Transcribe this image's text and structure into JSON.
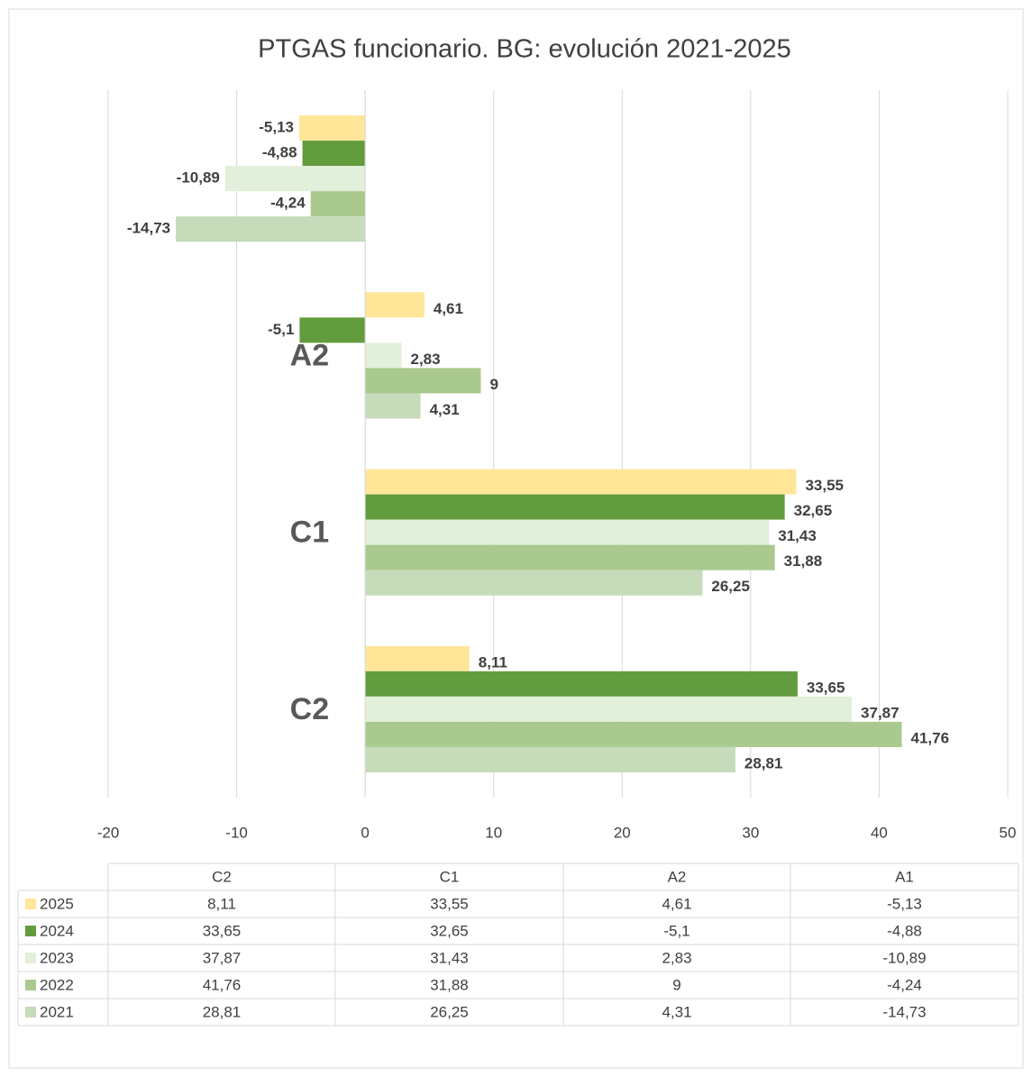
{
  "chart_data": {
    "type": "hbar",
    "title": "PTGAS funcionario. BG: evolución 2021-2025",
    "categories": [
      "C2",
      "C1",
      "A2",
      "A1"
    ],
    "series": [
      {
        "name": "2025",
        "color": "#ffe699",
        "values": [
          8.11,
          33.55,
          4.61,
          -5.13
        ],
        "value_labels": [
          "8,11",
          "33,55",
          "4,61",
          "-5,13"
        ]
      },
      {
        "name": "2024",
        "color": "#629c3e",
        "values": [
          33.65,
          32.65,
          -5.1,
          -4.88
        ],
        "value_labels": [
          "33,65",
          "32,65",
          "-5,1",
          "-4,88"
        ]
      },
      {
        "name": "2023",
        "color": "#e2efda",
        "values": [
          37.87,
          31.43,
          2.83,
          -10.89
        ],
        "value_labels": [
          "37,87",
          "31,43",
          "2,83",
          "-10,89"
        ]
      },
      {
        "name": "2022",
        "color": "#a9c98f",
        "values": [
          41.76,
          31.88,
          9,
          -4.24
        ],
        "value_labels": [
          "41,76",
          "31,88",
          "9",
          "-4,24"
        ]
      },
      {
        "name": "2021",
        "color": "#c5dbb9",
        "values": [
          28.81,
          26.25,
          4.31,
          -14.73
        ],
        "value_labels": [
          "28,81",
          "26,25",
          "4,31",
          "-14,73"
        ]
      }
    ],
    "xlim": [
      -20,
      50
    ],
    "xticks": [
      -20,
      -10,
      0,
      10,
      20,
      30,
      40,
      50
    ],
    "grid": true,
    "reverse_categories": true
  }
}
